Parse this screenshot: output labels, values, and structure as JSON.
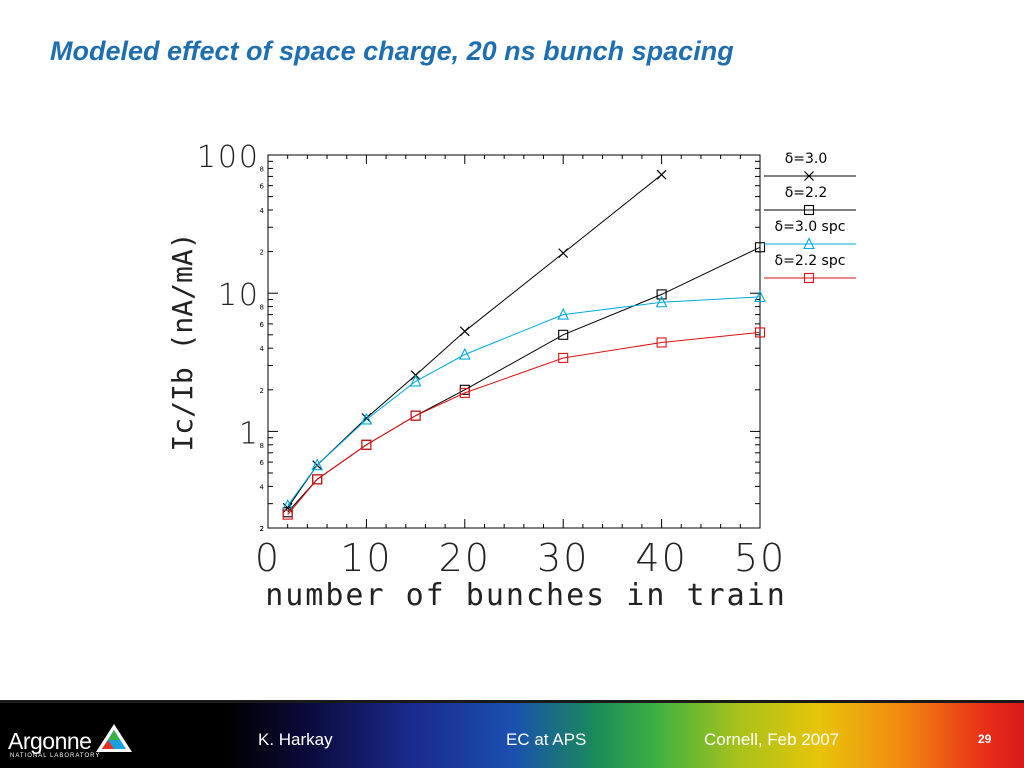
{
  "slide": {
    "title": "Modeled effect of space charge, 20 ns bunch spacing",
    "page_number": "29"
  },
  "footer": {
    "author": "K. Harkay",
    "topic": "EC at APS",
    "venue": "Cornell, Feb 2007",
    "logo_name": "Argonne",
    "logo_sub": "NATIONAL LABORATORY"
  },
  "chart_data": {
    "type": "line",
    "xlabel": "number of bunches in train",
    "ylabel": "Ic/Ib  (nA/mA)",
    "x_scale": "linear",
    "y_scale": "log",
    "xlim": [
      0,
      50
    ],
    "ylim": [
      0.2,
      100
    ],
    "x_ticks": [
      "0",
      "10",
      "20",
      "30",
      "40",
      "50"
    ],
    "y_major_ticks": [
      "1",
      "10",
      "100"
    ],
    "y_minor_tick_labels": [
      "2",
      "4",
      "6",
      "8"
    ],
    "legend_position": "right, outside plot",
    "series": [
      {
        "name": "δ=3.0",
        "color": "#000000",
        "marker": "x",
        "x": [
          2,
          5,
          10,
          15,
          20,
          30,
          40
        ],
        "y": [
          0.28,
          0.57,
          1.25,
          2.55,
          5.3,
          19.5,
          72
        ]
      },
      {
        "name": "δ=2.2",
        "color": "#000000",
        "marker": "square",
        "x": [
          2,
          5,
          10,
          15,
          20,
          30,
          40,
          50
        ],
        "y": [
          0.26,
          0.45,
          0.8,
          1.3,
          2.0,
          5.0,
          9.8,
          21.5
        ]
      },
      {
        "name": "δ=3.0  spc",
        "color": "#00aadd",
        "marker": "triangle",
        "x": [
          2,
          5,
          10,
          15,
          20,
          30,
          40,
          50
        ],
        "y": [
          0.29,
          0.57,
          1.22,
          2.3,
          3.6,
          7.0,
          8.6,
          9.4
        ]
      },
      {
        "name": "δ=2.2  spc",
        "color": "#dd1111",
        "marker": "square",
        "x": [
          2,
          5,
          10,
          15,
          20,
          30,
          40,
          50
        ],
        "y": [
          0.25,
          0.45,
          0.8,
          1.3,
          1.9,
          3.4,
          4.4,
          5.2
        ]
      }
    ]
  }
}
